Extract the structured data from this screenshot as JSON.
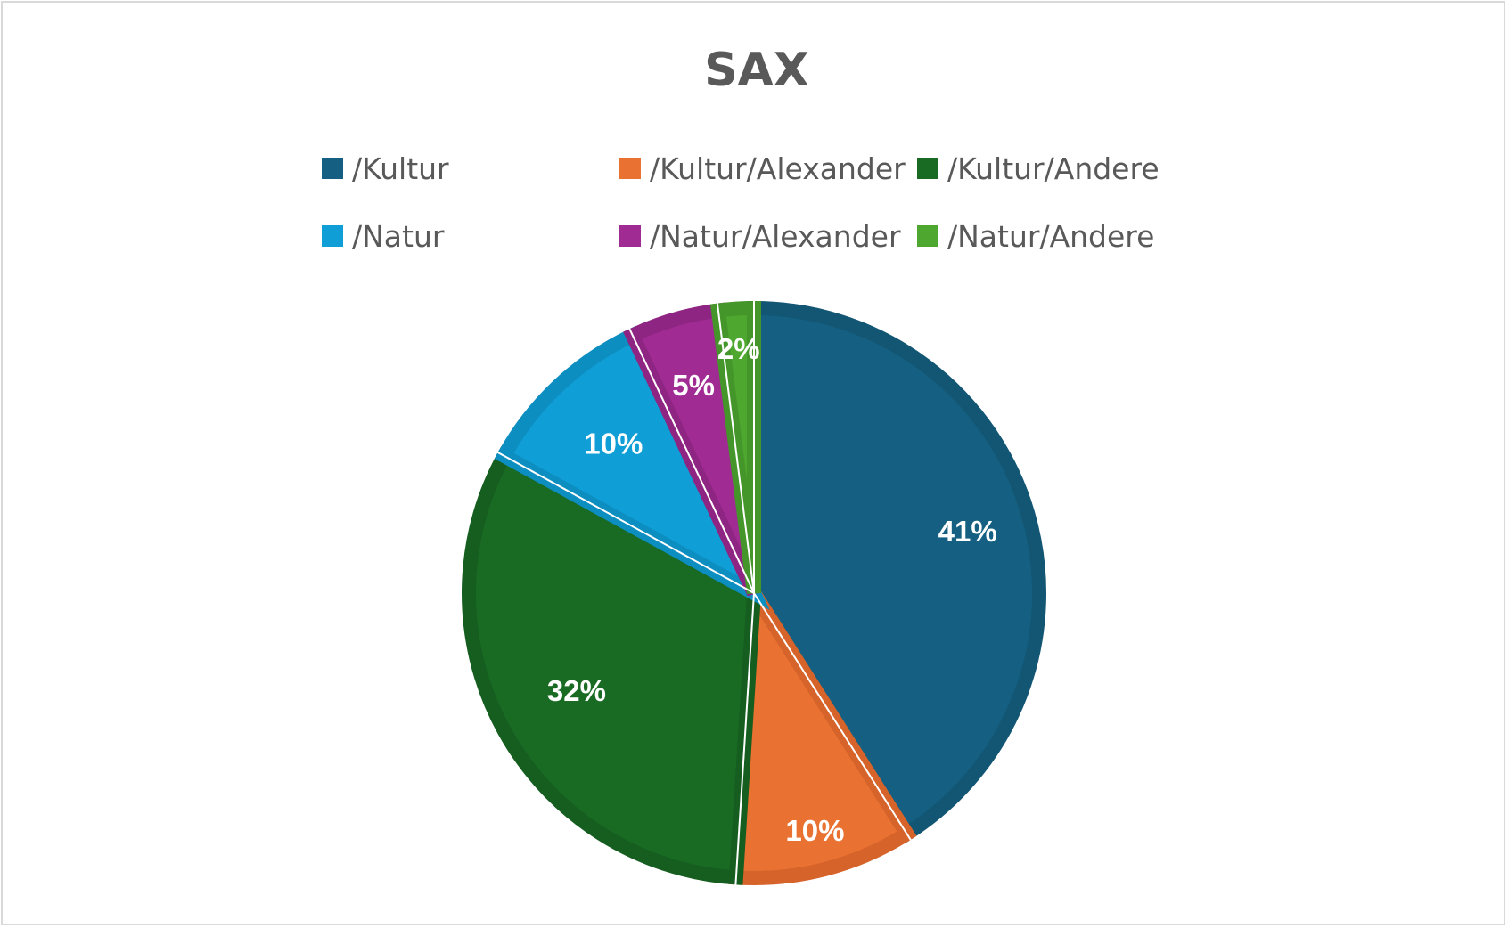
{
  "chart_data": {
    "type": "pie",
    "title": "SAX",
    "legend_position": "top",
    "categories": [
      "/Kultur",
      "/Kultur/Alexander",
      "/Kultur/Andere",
      "/Natur",
      "/Natur/Alexander",
      "/Natur/Andere"
    ],
    "values": [
      41,
      10,
      32,
      10,
      5,
      2
    ],
    "data_labels": [
      "41%",
      "10%",
      "32%",
      "10%",
      "5%",
      "2%"
    ],
    "colors": [
      "#156082",
      "#E97132",
      "#196B24",
      "#0F9ED5",
      "#A02B93",
      "#4EA72E"
    ],
    "border_colors": [
      "#125674",
      "#D6632A",
      "#165E20",
      "#0D8EC0",
      "#8E2582",
      "#44962A"
    ]
  }
}
